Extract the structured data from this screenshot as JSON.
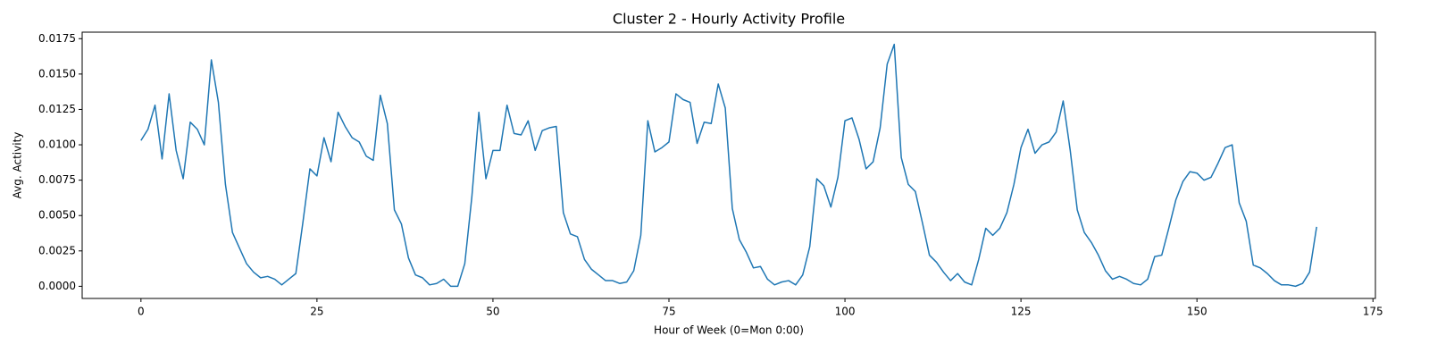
{
  "chart_data": {
    "type": "line",
    "title": "Cluster 2 - Hourly Activity Profile",
    "x_label": "Hour of Week (0=Mon 0:00)",
    "y_label": "Avg. Activity",
    "x": [
      0,
      1,
      2,
      3,
      4,
      5,
      6,
      7,
      8,
      9,
      10,
      11,
      12,
      13,
      14,
      15,
      16,
      17,
      18,
      19,
      20,
      21,
      22,
      23,
      24,
      25,
      26,
      27,
      28,
      29,
      30,
      31,
      32,
      33,
      34,
      35,
      36,
      37,
      38,
      39,
      40,
      41,
      42,
      43,
      44,
      45,
      46,
      47,
      48,
      49,
      50,
      51,
      52,
      53,
      54,
      55,
      56,
      57,
      58,
      59,
      60,
      61,
      62,
      63,
      64,
      65,
      66,
      67,
      68,
      69,
      70,
      71,
      72,
      73,
      74,
      75,
      76,
      77,
      78,
      79,
      80,
      81,
      82,
      83,
      84,
      85,
      86,
      87,
      88,
      89,
      90,
      91,
      92,
      93,
      94,
      95,
      96,
      97,
      98,
      99,
      100,
      101,
      102,
      103,
      104,
      105,
      106,
      107,
      108,
      109,
      110,
      111,
      112,
      113,
      114,
      115,
      116,
      117,
      118,
      119,
      120,
      121,
      122,
      123,
      124,
      125,
      126,
      127,
      128,
      129,
      130,
      131,
      132,
      133,
      134,
      135,
      136,
      137,
      138,
      139,
      140,
      141,
      142,
      143,
      144,
      145,
      146,
      147,
      148,
      149,
      150,
      151,
      152,
      153,
      154,
      155,
      156,
      157,
      158,
      159,
      160,
      161,
      162,
      163,
      164,
      165,
      166,
      167
    ],
    "series": [
      {
        "color": "#1f77b4",
        "values": [
          0.0103,
          0.0111,
          0.0128,
          0.009,
          0.0136,
          0.0096,
          0.0076,
          0.0116,
          0.0111,
          0.01,
          0.016,
          0.013,
          0.0072,
          0.0038,
          0.0027,
          0.0016,
          0.001,
          0.0006,
          0.0007,
          0.0005,
          0.0001,
          0.0005,
          0.0009,
          0.0045,
          0.0083,
          0.0078,
          0.0105,
          0.0088,
          0.0123,
          0.0113,
          0.0105,
          0.0102,
          0.0092,
          0.0089,
          0.0135,
          0.0115,
          0.0054,
          0.0044,
          0.002,
          0.0008,
          0.0006,
          0.0001,
          0.0002,
          0.0005,
          0.0,
          0.0,
          0.0016,
          0.0063,
          0.0123,
          0.0076,
          0.0096,
          0.0096,
          0.0128,
          0.0108,
          0.0107,
          0.0117,
          0.0096,
          0.011,
          0.0112,
          0.0113,
          0.0052,
          0.0037,
          0.0035,
          0.0019,
          0.0012,
          0.0008,
          0.0004,
          0.0004,
          0.0002,
          0.0003,
          0.0011,
          0.0036,
          0.0117,
          0.0095,
          0.0098,
          0.0102,
          0.0136,
          0.0132,
          0.013,
          0.0101,
          0.0116,
          0.0115,
          0.0143,
          0.0126,
          0.0055,
          0.0033,
          0.0024,
          0.0013,
          0.0014,
          0.0005,
          0.0001,
          0.0003,
          0.0004,
          0.0001,
          0.0008,
          0.0028,
          0.0076,
          0.0071,
          0.0056,
          0.0077,
          0.0117,
          0.0119,
          0.0104,
          0.0083,
          0.0088,
          0.0112,
          0.0157,
          0.0171,
          0.0091,
          0.0072,
          0.0067,
          0.0045,
          0.0022,
          0.0017,
          0.001,
          0.0004,
          0.0009,
          0.0003,
          0.0001,
          0.0019,
          0.0041,
          0.0036,
          0.0041,
          0.0052,
          0.0072,
          0.0098,
          0.0111,
          0.0094,
          0.01,
          0.0102,
          0.0109,
          0.0131,
          0.0096,
          0.0054,
          0.0038,
          0.0031,
          0.0022,
          0.0011,
          0.0005,
          0.0007,
          0.0005,
          0.0002,
          0.0001,
          0.0005,
          0.0021,
          0.0022,
          0.0041,
          0.0061,
          0.0074,
          0.0081,
          0.008,
          0.0075,
          0.0077,
          0.0087,
          0.0098,
          0.01,
          0.0059,
          0.0046,
          0.0015,
          0.0013,
          0.0009,
          0.0004,
          0.0001,
          0.0001,
          0.0,
          0.0002,
          0.001,
          0.0042
        ]
      }
    ],
    "xlim": [
      -8.35,
      175.35
    ],
    "ylim": [
      -0.00086,
      0.01796
    ],
    "xticks": [
      0,
      25,
      50,
      75,
      100,
      125,
      150,
      175
    ],
    "yticks": [
      {
        "value": 0,
        "label": "0.0000"
      },
      {
        "value": 0.0025,
        "label": "0.0025"
      },
      {
        "value": 0.005,
        "label": "0.0050"
      },
      {
        "value": 0.0075,
        "label": "0.0075"
      },
      {
        "value": 0.01,
        "label": "0.0100"
      },
      {
        "value": 0.0125,
        "label": "0.0125"
      },
      {
        "value": 0.015,
        "label": "0.0150"
      },
      {
        "value": 0.0175,
        "label": "0.0175"
      }
    ],
    "grid": false
  }
}
